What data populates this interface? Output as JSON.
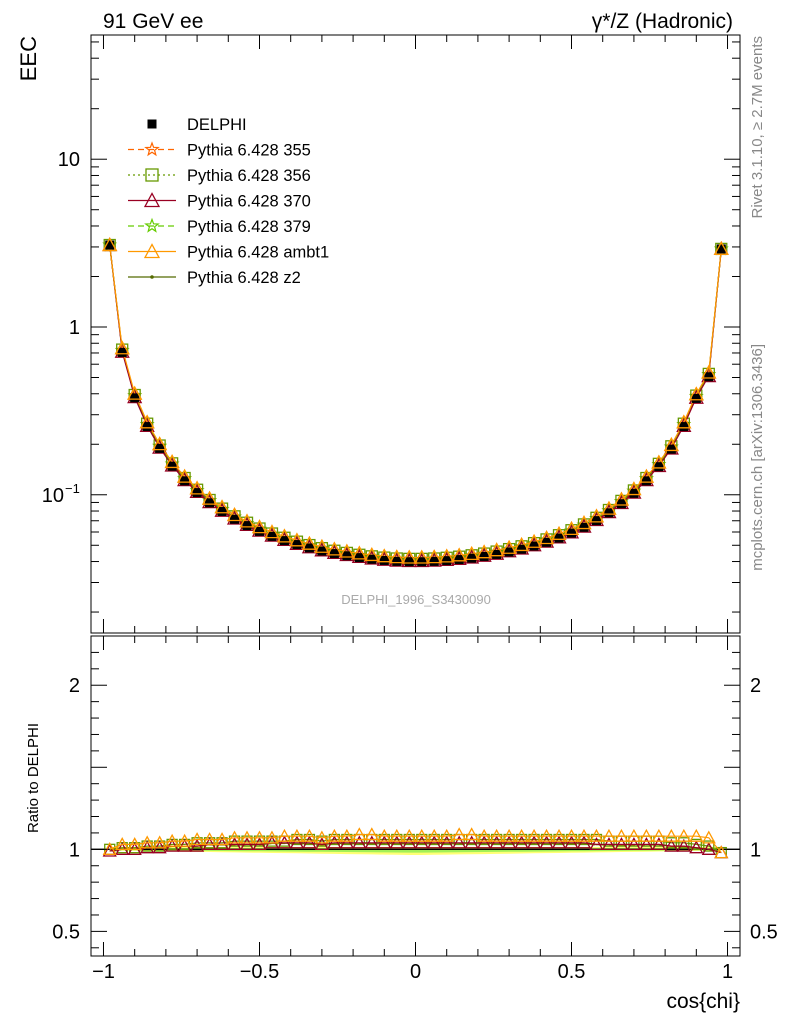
{
  "header": {
    "left_label": "91 GeV ee",
    "right_label": "γ*/Z (Hadronic)"
  },
  "side": {
    "rivet_label": "Rivet 3.1.10, ≥ 2.7M events",
    "mcplots_label": "mcplots.cern.ch [arXiv:1306.3436]"
  },
  "watermark": "DELPHI_1996_S3430090",
  "chart_data": [
    {
      "type": "line",
      "panel": "main",
      "ylabel": "EEC",
      "xlabel": "cos{chi}",
      "yscale": "log",
      "xlim": [
        -1.04,
        1.04
      ],
      "ylim": [
        0.015,
        55
      ],
      "grid": false,
      "legend_position": "top-left",
      "y_tick_labels": [
        {
          "value": 0.1,
          "base": "10",
          "exp": "−1"
        },
        {
          "value": 1,
          "label": "1"
        },
        {
          "value": 10,
          "label": "10"
        }
      ],
      "x_tick_labels": [
        {
          "value": -1,
          "label": "−1"
        },
        {
          "value": -0.5,
          "label": "−0.5"
        },
        {
          "value": 0,
          "label": "0"
        },
        {
          "value": 0.5,
          "label": "0.5"
        },
        {
          "value": 1,
          "label": "1"
        }
      ],
      "x": [
        -0.98,
        -0.94,
        -0.9,
        -0.86,
        -0.82,
        -0.78,
        -0.74,
        -0.7,
        -0.66,
        -0.62,
        -0.58,
        -0.54,
        -0.5,
        -0.46,
        -0.42,
        -0.38,
        -0.34,
        -0.3,
        -0.26,
        -0.22,
        -0.18,
        -0.14,
        -0.1,
        -0.06,
        -0.02,
        0.02,
        0.06,
        0.1,
        0.14,
        0.18,
        0.22,
        0.26,
        0.3,
        0.34,
        0.38,
        0.42,
        0.46,
        0.5,
        0.54,
        0.58,
        0.62,
        0.66,
        0.7,
        0.74,
        0.78,
        0.82,
        0.86,
        0.9,
        0.94,
        0.98
      ],
      "series": [
        {
          "name": "DELPHI",
          "color": "#000000",
          "marker": "square",
          "linestyle": "none",
          "values": [
            3.08,
            0.705,
            0.378,
            0.255,
            0.189,
            0.148,
            0.121,
            0.103,
            0.0895,
            0.0795,
            0.0715,
            0.0655,
            0.0605,
            0.0565,
            0.0533,
            0.0505,
            0.0482,
            0.0462,
            0.0446,
            0.0433,
            0.0422,
            0.0413,
            0.0406,
            0.0401,
            0.0399,
            0.0399,
            0.0401,
            0.0405,
            0.0411,
            0.0419,
            0.0429,
            0.0441,
            0.0456,
            0.0474,
            0.0495,
            0.0521,
            0.0552,
            0.0591,
            0.064,
            0.0701,
            0.078,
            0.0884,
            0.102,
            0.121,
            0.147,
            0.187,
            0.255,
            0.375,
            0.505,
            2.92
          ]
        },
        {
          "name": "Pythia 6.428 355",
          "color": "#ff6600",
          "marker": "star",
          "linestyle": "dashed"
        },
        {
          "name": "Pythia 6.428 356",
          "color": "#669900",
          "marker": "open-square",
          "linestyle": "dotted"
        },
        {
          "name": "Pythia 6.428 370",
          "color": "#990022",
          "marker": "open-triangle",
          "linestyle": "solid"
        },
        {
          "name": "Pythia 6.428 379",
          "color": "#66cc00",
          "marker": "star",
          "linestyle": "dashed"
        },
        {
          "name": "Pythia 6.428 ambt1",
          "color": "#ff9900",
          "marker": "open-triangle",
          "linestyle": "solid"
        },
        {
          "name": "Pythia 6.428 z2",
          "color": "#556b00",
          "marker": "dot",
          "linestyle": "solid"
        }
      ]
    },
    {
      "type": "line",
      "panel": "ratio",
      "ylabel": "Ratio to DELPHI",
      "xlabel": "cos{chi}",
      "xlim": [
        -1.04,
        1.04
      ],
      "ylim": [
        0.35,
        2.3
      ],
      "grid": false,
      "y_tick_labels": [
        {
          "value": 0.5,
          "label": "0.5"
        },
        {
          "value": 1,
          "label": "1"
        },
        {
          "value": 2,
          "label": "2"
        }
      ],
      "band": {
        "lower": 0.97,
        "upper": 1.02,
        "colors": [
          "#ffff66",
          "#99ee55"
        ]
      },
      "series": [
        {
          "name": "Pythia 6.428 ambt1",
          "color": "#ff9900",
          "values": [
            1.0,
            1.03,
            1.03,
            1.04,
            1.04,
            1.05,
            1.05,
            1.06,
            1.06,
            1.06,
            1.07,
            1.07,
            1.07,
            1.07,
            1.08,
            1.08,
            1.08,
            1.07,
            1.08,
            1.08,
            1.09,
            1.09,
            1.08,
            1.08,
            1.08,
            1.08,
            1.08,
            1.08,
            1.09,
            1.09,
            1.08,
            1.08,
            1.08,
            1.08,
            1.08,
            1.08,
            1.08,
            1.08,
            1.08,
            1.08,
            1.08,
            1.08,
            1.08,
            1.08,
            1.08,
            1.08,
            1.08,
            1.08,
            1.07,
            0.98
          ]
        },
        {
          "name": "Pythia 6.428 370",
          "color": "#990022",
          "values": [
            0.99,
            1.0,
            1.0,
            1.01,
            1.01,
            1.02,
            1.02,
            1.02,
            1.03,
            1.03,
            1.03,
            1.03,
            1.03,
            1.04,
            1.04,
            1.04,
            1.04,
            1.03,
            1.04,
            1.04,
            1.04,
            1.04,
            1.04,
            1.04,
            1.04,
            1.04,
            1.04,
            1.04,
            1.04,
            1.04,
            1.04,
            1.04,
            1.04,
            1.04,
            1.04,
            1.04,
            1.04,
            1.04,
            1.04,
            1.03,
            1.03,
            1.03,
            1.03,
            1.03,
            1.03,
            1.02,
            1.02,
            1.01,
            1.0,
            0.98
          ]
        },
        {
          "name": "Pythia 6.428 356",
          "color": "#669900",
          "values": [
            1.0,
            1.01,
            1.01,
            1.02,
            1.02,
            1.03,
            1.03,
            1.04,
            1.04,
            1.04,
            1.05,
            1.05,
            1.05,
            1.05,
            1.05,
            1.06,
            1.06,
            1.05,
            1.06,
            1.06,
            1.06,
            1.06,
            1.06,
            1.06,
            1.06,
            1.06,
            1.06,
            1.06,
            1.06,
            1.06,
            1.06,
            1.06,
            1.06,
            1.06,
            1.06,
            1.06,
            1.06,
            1.06,
            1.06,
            1.06,
            1.05,
            1.05,
            1.05,
            1.05,
            1.05,
            1.04,
            1.04,
            1.03,
            1.02,
            0.98
          ]
        }
      ]
    }
  ]
}
